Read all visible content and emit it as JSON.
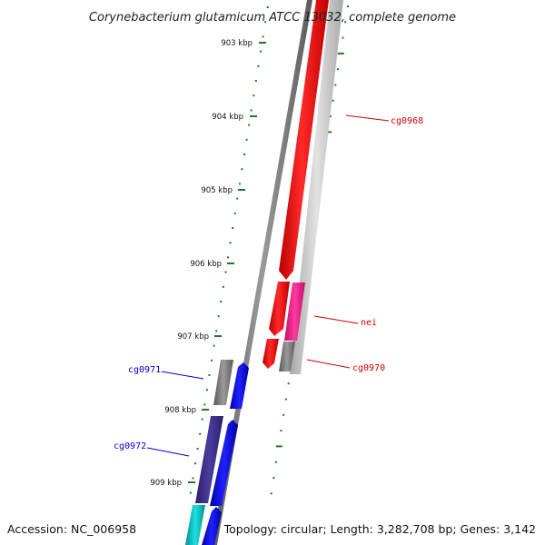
{
  "header": {
    "title": "Corynebacterium glutamicum ATCC 13032, complete genome"
  },
  "footer": {
    "accession": "Accession: NC_006958",
    "stats": "Topology: circular; Length: 3,282,708 bp; Genes: 3,142"
  },
  "ruler": {
    "color": "#1e7a1e",
    "major_labels": [
      "903 kbp",
      "904 kbp",
      "905 kbp",
      "906 kbp",
      "907 kbp",
      "908 kbp",
      "909 kbp"
    ]
  },
  "genes": [
    {
      "id": "cg0968",
      "label": "cg0968",
      "strand": "forward",
      "color": "#ff0000",
      "label_color": "#cc0000"
    },
    {
      "id": "nei",
      "label": "nei",
      "strand": "forward",
      "color": "#ff2090",
      "label_color": "#cc0000"
    },
    {
      "id": "cg0970",
      "label": "cg0970",
      "strand": "forward",
      "color": "#555555",
      "label_color": "#cc0000"
    },
    {
      "id": "cg0971",
      "label": "cg0971",
      "strand": "reverse",
      "color": "#555555",
      "label_color": "#0000cc"
    },
    {
      "id": "cg0972",
      "label": "cg0972",
      "strand": "reverse",
      "color": "#3a2d8a",
      "label_color": "#0000cc"
    }
  ],
  "colors": {
    "forward_cds": "#ff0000",
    "reverse_cds": "#0000ff",
    "backbone": "#808080",
    "gc_track": "#bfbfbf",
    "cyan_feature": "#00c0c0"
  }
}
